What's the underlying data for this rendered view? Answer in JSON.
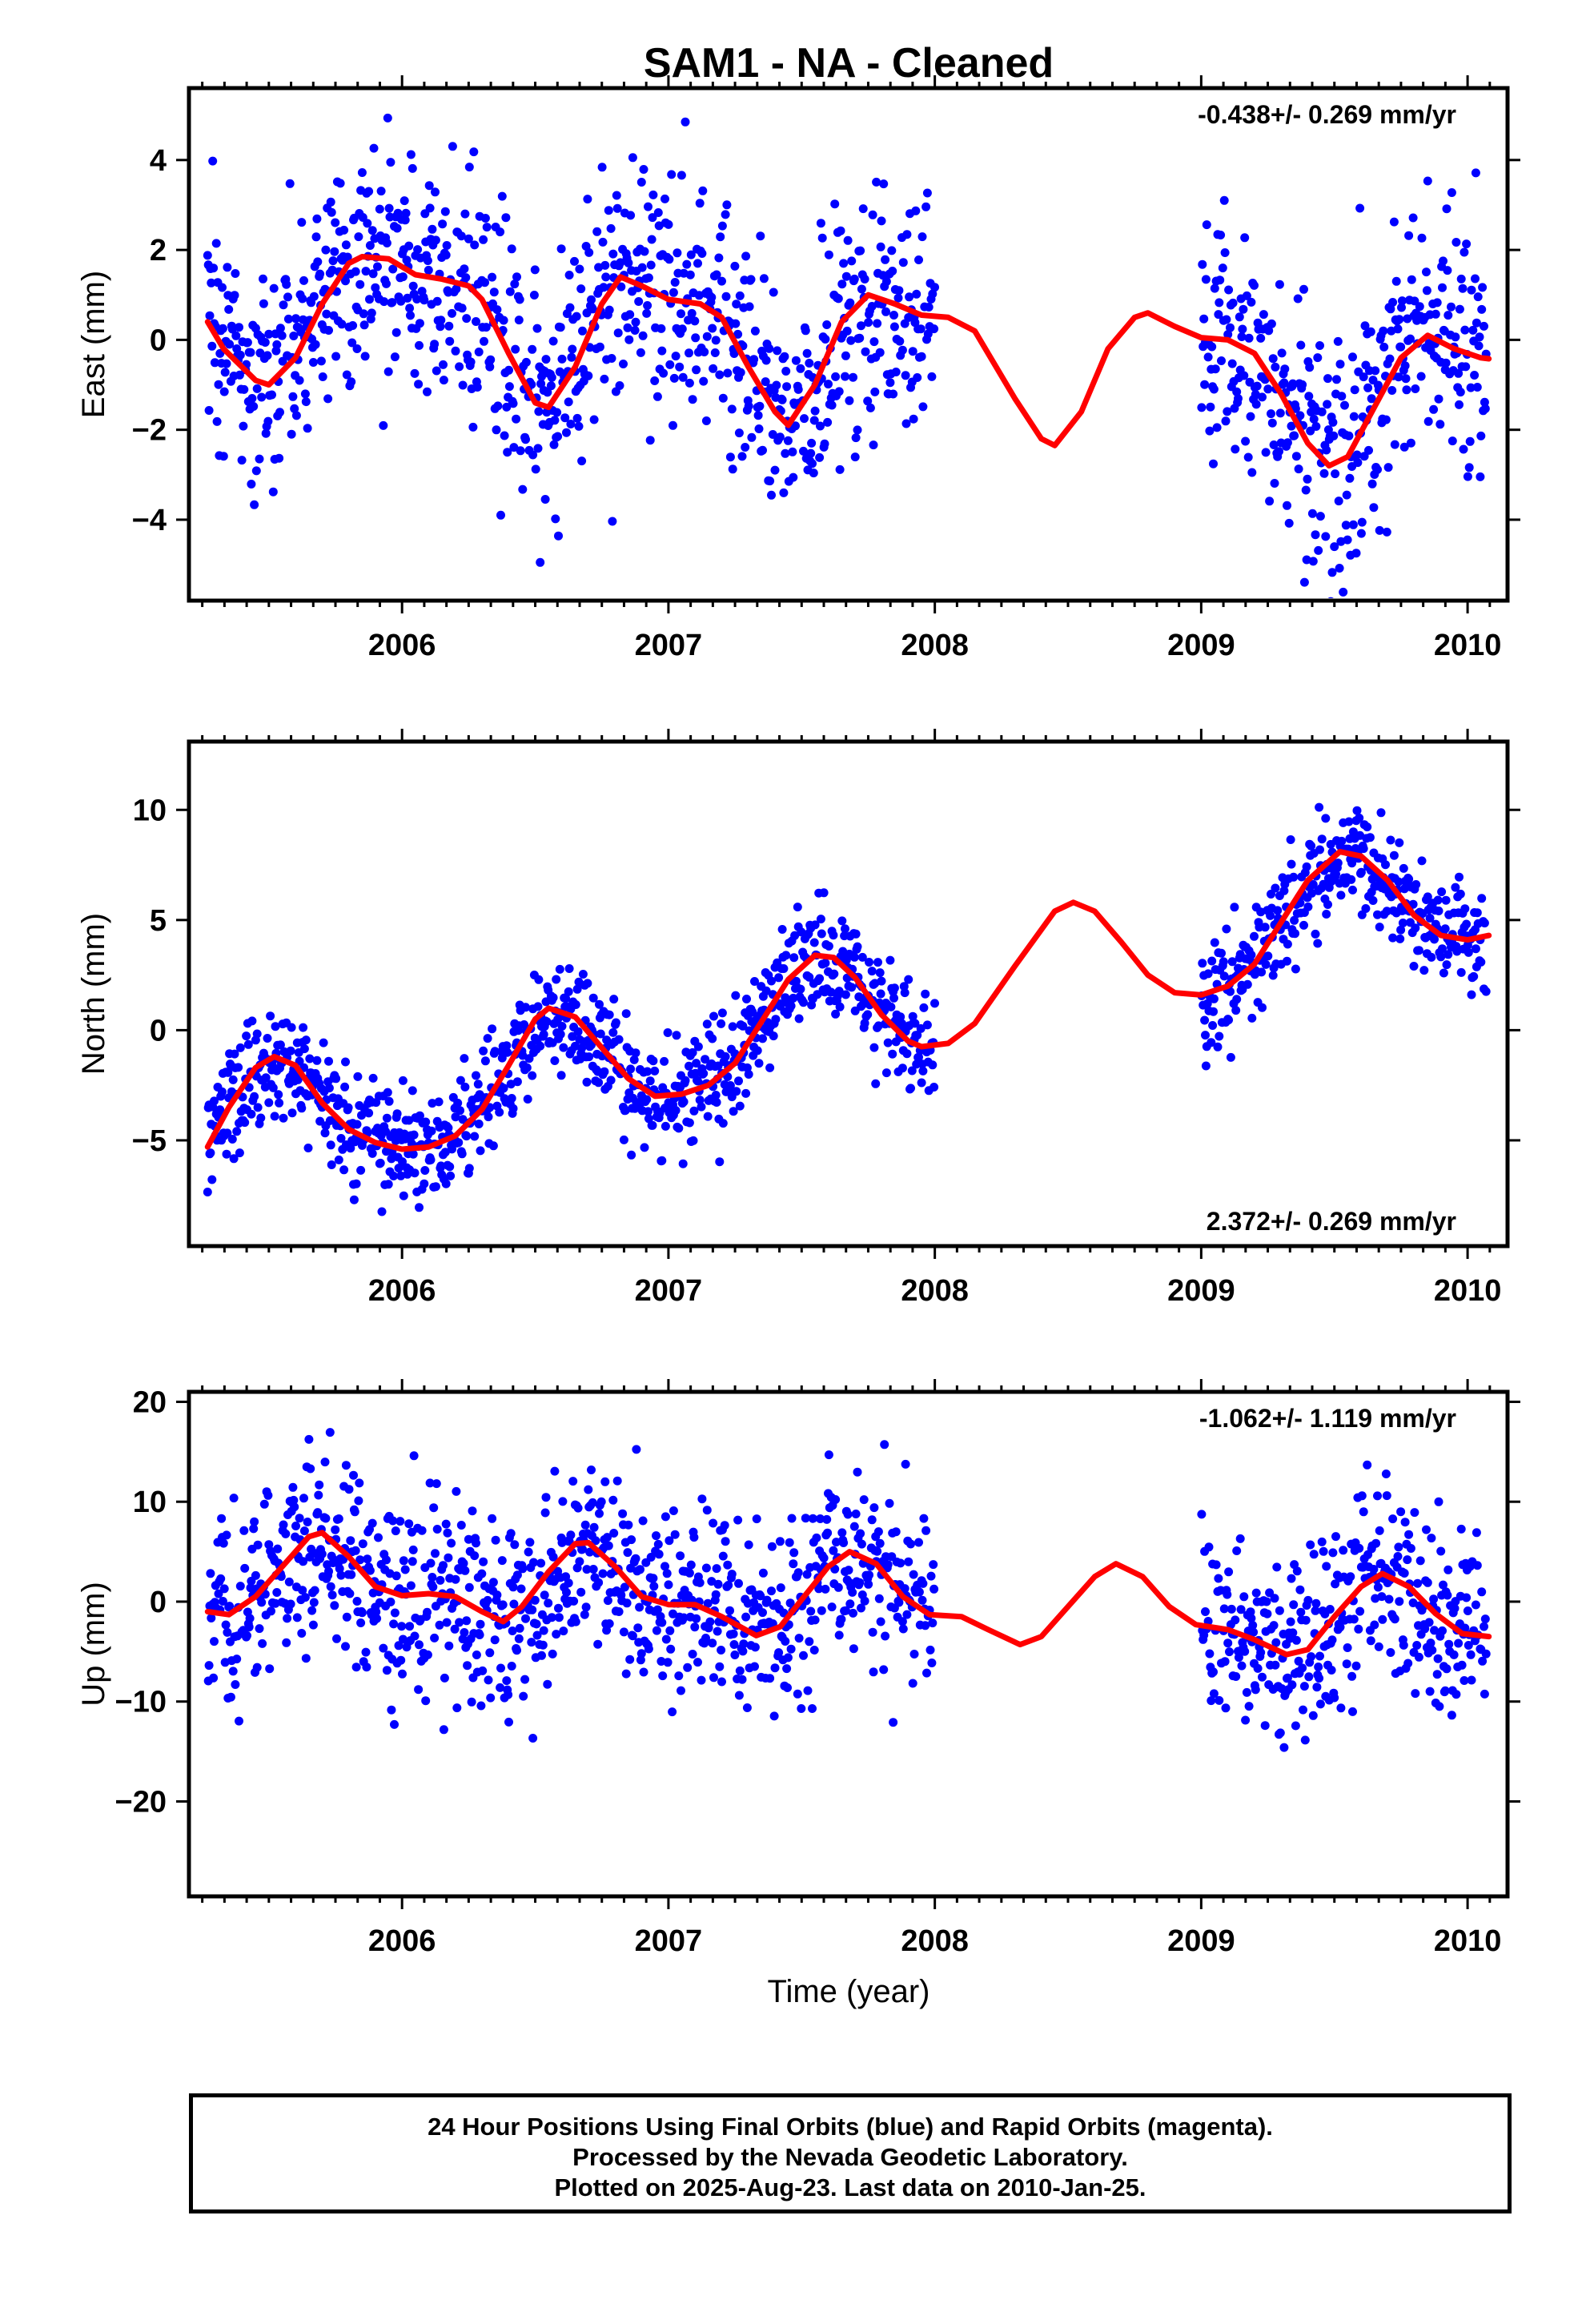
{
  "chart_data": {
    "type": "scatter",
    "title": "SAM1  - NA - Cleaned",
    "xlabel": "Time (year)",
    "xlim": [
      2005.2,
      2010.15
    ],
    "xticks": [
      2006,
      2007,
      2008,
      2009,
      2010
    ],
    "point_color": "#0000ff",
    "fit_color": "#ff0000",
    "data_gap": [
      2008.0,
      2009.0
    ],
    "panels": [
      {
        "ylabel": "East (mm)",
        "rate": "-0.438+/- 0.269 mm/yr",
        "rate_position": "top-right",
        "ylim": [
          -5.8,
          5.6
        ],
        "yticks": [
          4,
          2,
          0,
          -2,
          -4
        ],
        "fit": [
          [
            2005.27,
            0.4
          ],
          [
            2005.33,
            -0.2
          ],
          [
            2005.45,
            -0.9
          ],
          [
            2005.5,
            -1.0
          ],
          [
            2005.6,
            -0.4
          ],
          [
            2005.7,
            0.8
          ],
          [
            2005.8,
            1.7
          ],
          [
            2005.85,
            1.85
          ],
          [
            2005.95,
            1.8
          ],
          [
            2006.05,
            1.45
          ],
          [
            2006.15,
            1.35
          ],
          [
            2006.25,
            1.2
          ],
          [
            2006.3,
            0.9
          ],
          [
            2006.4,
            -0.3
          ],
          [
            2006.5,
            -1.4
          ],
          [
            2006.55,
            -1.5
          ],
          [
            2006.65,
            -0.6
          ],
          [
            2006.75,
            0.8
          ],
          [
            2006.82,
            1.4
          ],
          [
            2006.9,
            1.2
          ],
          [
            2007.0,
            0.9
          ],
          [
            2007.12,
            0.8
          ],
          [
            2007.2,
            0.5
          ],
          [
            2007.3,
            -0.6
          ],
          [
            2007.4,
            -1.6
          ],
          [
            2007.45,
            -1.9
          ],
          [
            2007.55,
            -1.0
          ],
          [
            2007.65,
            0.4
          ],
          [
            2007.75,
            1.0
          ],
          [
            2007.85,
            0.8
          ],
          [
            2007.95,
            0.55
          ],
          [
            2008.05,
            0.5
          ],
          [
            2008.15,
            0.2
          ],
          [
            2008.3,
            -1.3
          ],
          [
            2008.4,
            -2.2
          ],
          [
            2008.45,
            -2.35
          ],
          [
            2008.55,
            -1.6
          ],
          [
            2008.65,
            -0.2
          ],
          [
            2008.75,
            0.5
          ],
          [
            2008.8,
            0.6
          ],
          [
            2008.9,
            0.3
          ],
          [
            2009.0,
            0.05
          ],
          [
            2009.1,
            0.0
          ],
          [
            2009.2,
            -0.3
          ],
          [
            2009.3,
            -1.2
          ],
          [
            2009.4,
            -2.3
          ],
          [
            2009.48,
            -2.8
          ],
          [
            2009.55,
            -2.6
          ],
          [
            2009.65,
            -1.5
          ],
          [
            2009.75,
            -0.4
          ],
          [
            2009.85,
            0.1
          ],
          [
            2009.95,
            -0.2
          ],
          [
            2010.05,
            -0.4
          ],
          [
            2010.08,
            -0.42
          ]
        ]
      },
      {
        "ylabel": "North (mm)",
        "rate": "2.372+/- 0.269 mm/yr",
        "rate_position": "bottom-right",
        "ylim": [
          -9.8,
          13.1
        ],
        "yticks": [
          10,
          5,
          0,
          -5
        ],
        "fit": [
          [
            2005.27,
            -5.3
          ],
          [
            2005.35,
            -3.5
          ],
          [
            2005.45,
            -1.7
          ],
          [
            2005.52,
            -1.2
          ],
          [
            2005.6,
            -1.6
          ],
          [
            2005.7,
            -3.3
          ],
          [
            2005.8,
            -4.5
          ],
          [
            2005.9,
            -5.1
          ],
          [
            2006.0,
            -5.4
          ],
          [
            2006.1,
            -5.3
          ],
          [
            2006.2,
            -4.8
          ],
          [
            2006.3,
            -3.6
          ],
          [
            2006.4,
            -1.6
          ],
          [
            2006.5,
            0.5
          ],
          [
            2006.55,
            1.0
          ],
          [
            2006.65,
            0.6
          ],
          [
            2006.75,
            -0.8
          ],
          [
            2006.85,
            -2.2
          ],
          [
            2006.95,
            -3.0
          ],
          [
            2007.05,
            -2.9
          ],
          [
            2007.15,
            -2.5
          ],
          [
            2007.25,
            -1.5
          ],
          [
            2007.35,
            0.4
          ],
          [
            2007.45,
            2.3
          ],
          [
            2007.55,
            3.4
          ],
          [
            2007.62,
            3.3
          ],
          [
            2007.7,
            2.4
          ],
          [
            2007.8,
            0.7
          ],
          [
            2007.9,
            -0.5
          ],
          [
            2007.95,
            -0.75
          ],
          [
            2008.05,
            -0.6
          ],
          [
            2008.15,
            0.3
          ],
          [
            2008.3,
            2.9
          ],
          [
            2008.45,
            5.4
          ],
          [
            2008.52,
            5.8
          ],
          [
            2008.6,
            5.4
          ],
          [
            2008.7,
            4.0
          ],
          [
            2008.8,
            2.5
          ],
          [
            2008.9,
            1.7
          ],
          [
            2009.0,
            1.6
          ],
          [
            2009.1,
            2.0
          ],
          [
            2009.2,
            3.0
          ],
          [
            2009.3,
            4.9
          ],
          [
            2009.4,
            6.8
          ],
          [
            2009.52,
            8.1
          ],
          [
            2009.6,
            7.9
          ],
          [
            2009.7,
            6.8
          ],
          [
            2009.8,
            5.2
          ],
          [
            2009.9,
            4.3
          ],
          [
            2010.0,
            4.1
          ],
          [
            2010.08,
            4.3
          ]
        ]
      },
      {
        "ylabel": "Up (mm)",
        "rate": "-1.062+/- 1.119 mm/yr",
        "rate_position": "top-right",
        "ylim": [
          -29.5,
          21.0
        ],
        "yticks": [
          20,
          10,
          0,
          -10,
          -20
        ],
        "fit": [
          [
            2005.27,
            -1.0
          ],
          [
            2005.35,
            -1.3
          ],
          [
            2005.45,
            0.5
          ],
          [
            2005.55,
            3.5
          ],
          [
            2005.65,
            6.5
          ],
          [
            2005.7,
            6.9
          ],
          [
            2005.8,
            4.5
          ],
          [
            2005.9,
            1.5
          ],
          [
            2006.0,
            0.6
          ],
          [
            2006.1,
            0.8
          ],
          [
            2006.2,
            0.5
          ],
          [
            2006.3,
            -1.0
          ],
          [
            2006.38,
            -2.0
          ],
          [
            2006.45,
            -0.5
          ],
          [
            2006.55,
            3.0
          ],
          [
            2006.65,
            5.8
          ],
          [
            2006.7,
            5.9
          ],
          [
            2006.8,
            3.5
          ],
          [
            2006.9,
            0.5
          ],
          [
            2007.0,
            -0.3
          ],
          [
            2007.1,
            -0.3
          ],
          [
            2007.2,
            -1.5
          ],
          [
            2007.33,
            -3.4
          ],
          [
            2007.42,
            -2.5
          ],
          [
            2007.5,
            0.2
          ],
          [
            2007.6,
            3.5
          ],
          [
            2007.68,
            5.0
          ],
          [
            2007.78,
            3.8
          ],
          [
            2007.88,
            0.5
          ],
          [
            2007.98,
            -1.3
          ],
          [
            2008.1,
            -1.5
          ],
          [
            2008.2,
            -2.8
          ],
          [
            2008.32,
            -4.3
          ],
          [
            2008.4,
            -3.5
          ],
          [
            2008.5,
            -0.5
          ],
          [
            2008.6,
            2.5
          ],
          [
            2008.68,
            3.8
          ],
          [
            2008.78,
            2.5
          ],
          [
            2008.88,
            -0.5
          ],
          [
            2008.98,
            -2.3
          ],
          [
            2009.1,
            -2.8
          ],
          [
            2009.2,
            -3.8
          ],
          [
            2009.32,
            -5.3
          ],
          [
            2009.4,
            -4.8
          ],
          [
            2009.5,
            -1.5
          ],
          [
            2009.6,
            1.5
          ],
          [
            2009.68,
            2.8
          ],
          [
            2009.78,
            1.5
          ],
          [
            2009.88,
            -1.2
          ],
          [
            2009.98,
            -3.2
          ],
          [
            2010.08,
            -3.5
          ]
        ]
      }
    ]
  },
  "footer": {
    "line1": "24 Hour Positions Using Final Orbits (blue) and Rapid Orbits (magenta).",
    "line2": "Processed by the Nevada Geodetic Laboratory.",
    "line3": "Plotted on 2025-Aug-23. Last data on 2010-Jan-25."
  }
}
